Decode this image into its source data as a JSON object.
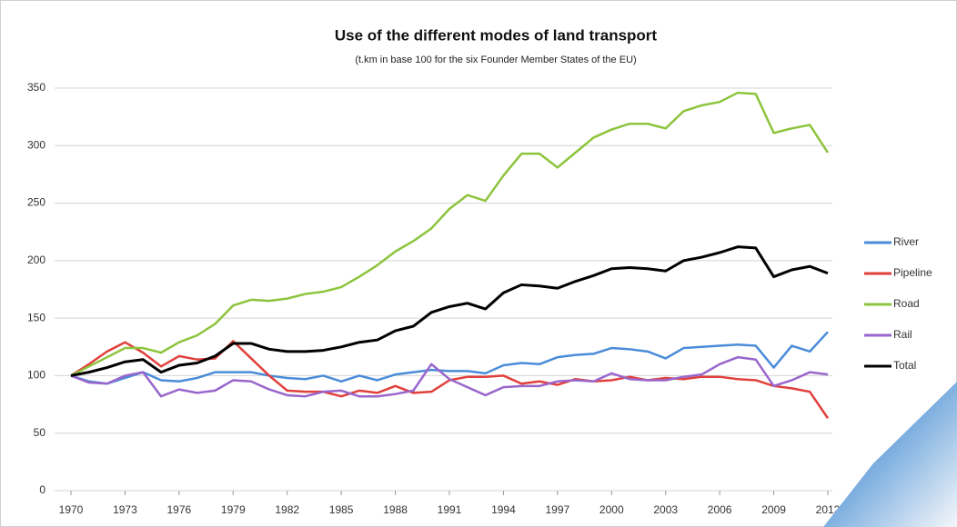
{
  "chart_data": {
    "type": "line",
    "title": "Use of the different modes of land transport",
    "subtitle": "(t.km in base 100 for the six Founder Member States of the EU)",
    "x": [
      1970,
      1971,
      1972,
      1973,
      1974,
      1975,
      1976,
      1977,
      1978,
      1979,
      1980,
      1981,
      1982,
      1983,
      1984,
      1985,
      1986,
      1987,
      1988,
      1989,
      1990,
      1991,
      1992,
      1993,
      1994,
      1995,
      1996,
      1997,
      1998,
      1999,
      2000,
      2001,
      2002,
      2003,
      2004,
      2005,
      2006,
      2007,
      2008,
      2009,
      2010,
      2011,
      2012
    ],
    "xlim": [
      1970,
      2012
    ],
    "xticks": [
      1970,
      1973,
      1976,
      1979,
      1982,
      1985,
      1988,
      1991,
      1994,
      1997,
      2000,
      2003,
      2006,
      2009,
      2012
    ],
    "ylim": [
      0,
      350
    ],
    "yticks": [
      0,
      50,
      100,
      150,
      200,
      250,
      300,
      350
    ],
    "grid": true,
    "legend": "right",
    "series": [
      {
        "name": "River",
        "color": "#4a8cd8",
        "values": [
          100,
          95,
          93,
          98,
          103,
          96,
          95,
          98,
          103,
          103,
          103,
          100,
          98,
          97,
          100,
          95,
          100,
          96,
          101,
          103,
          105,
          104,
          104,
          102,
          109,
          111,
          110,
          116,
          118,
          119,
          124,
          123,
          121,
          115,
          124,
          125,
          126,
          127,
          126,
          107,
          126,
          121,
          138
        ]
      },
      {
        "name": "Pipeline",
        "color": "#e0403c",
        "values": [
          100,
          110,
          121,
          129,
          120,
          108,
          117,
          114,
          115,
          130,
          115,
          100,
          87,
          86,
          86,
          82,
          87,
          85,
          91,
          85,
          86,
          96,
          99,
          99,
          100,
          93,
          95,
          92,
          97,
          95,
          96,
          99,
          96,
          98,
          97,
          99,
          99,
          97,
          96,
          91,
          89,
          86,
          63
        ]
      },
      {
        "name": "Road",
        "color": "#8cc43c",
        "values": [
          100,
          108,
          116,
          124,
          124,
          120,
          129,
          135,
          145,
          161,
          166,
          165,
          167,
          171,
          173,
          177,
          186,
          196,
          208,
          217,
          228,
          245,
          257,
          252,
          274,
          293,
          293,
          281,
          294,
          307,
          314,
          319,
          319,
          315,
          330,
          335,
          338,
          346,
          345,
          311,
          315,
          318,
          294
        ]
      },
      {
        "name": "Rail",
        "color": "#9966cc",
        "values": [
          100,
          94,
          93,
          100,
          103,
          82,
          88,
          85,
          87,
          96,
          95,
          88,
          83,
          82,
          86,
          87,
          82,
          82,
          84,
          87,
          110,
          97,
          90,
          83,
          90,
          91,
          91,
          95,
          96,
          95,
          102,
          97,
          96,
          96,
          99,
          101,
          110,
          116,
          114,
          91,
          96,
          103,
          101
        ]
      },
      {
        "name": "Total",
        "color": "#000000",
        "values": [
          100,
          103,
          107,
          112,
          114,
          103,
          109,
          111,
          117,
          128,
          128,
          123,
          121,
          121,
          122,
          125,
          129,
          131,
          139,
          143,
          155,
          160,
          163,
          158,
          172,
          179,
          178,
          176,
          182,
          187,
          193,
          194,
          193,
          191,
          200,
          203,
          207,
          212,
          211,
          186,
          192,
          195,
          189
        ]
      }
    ]
  }
}
